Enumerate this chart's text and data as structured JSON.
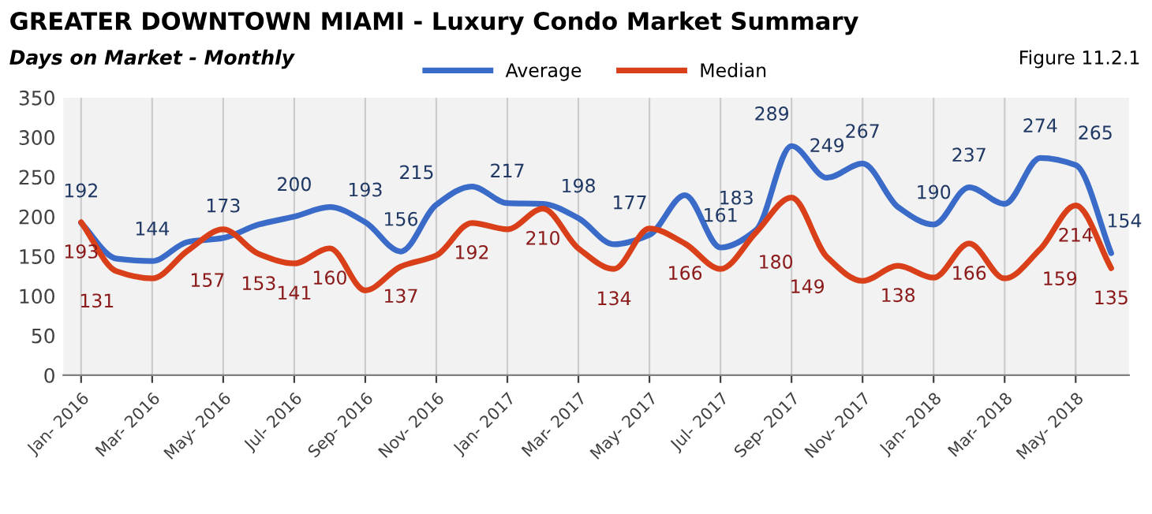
{
  "chart_data": {
    "type": "line",
    "title": "GREATER DOWNTOWN MIAMI - Luxury Condo Market Summary",
    "subtitle": "Days on Market - Monthly",
    "annotations": [
      "Figure 11.2.1"
    ],
    "categories": [
      "Jan- 2016",
      null,
      "Mar- 2016",
      null,
      "May- 2016",
      null,
      "Jul- 2016",
      null,
      "Sep- 2016",
      null,
      "Nov- 2016",
      null,
      "Jan- 2017",
      null,
      "Mar- 2017",
      null,
      "May- 2017",
      null,
      "Jul- 2017",
      null,
      "Sep- 2017",
      null,
      "Nov- 2017",
      null,
      "Jan- 2018",
      null,
      "Mar- 2018",
      null,
      "May- 2018",
      null
    ],
    "series": [
      {
        "name": "Average",
        "color": "#3a6bc8",
        "values": [
          192,
          147,
          144,
          168,
          173,
          190,
          200,
          212,
          193,
          156,
          215,
          238,
          217,
          216,
          198,
          165,
          177,
          227,
          161,
          183,
          289,
          249,
          267,
          212,
          190,
          237,
          216,
          274,
          265,
          154
        ],
        "value_labels": [
          "192",
          null,
          "144",
          null,
          "173",
          null,
          "200",
          null,
          "193",
          "156",
          "215",
          null,
          "217",
          null,
          "198",
          null,
          "177",
          null,
          "161",
          "183",
          "289",
          "249",
          "267",
          null,
          "190",
          "237",
          null,
          "274",
          "265",
          "154"
        ]
      },
      {
        "name": "Median",
        "color": "#d9401a",
        "values": [
          193,
          131,
          122,
          157,
          184,
          153,
          141,
          160,
          107,
          137,
          151,
          192,
          184,
          210,
          160,
          134,
          185,
          166,
          134,
          180,
          224,
          149,
          119,
          138,
          123,
          166,
          122,
          159,
          214,
          135
        ],
        "value_labels": [
          "193",
          "131",
          null,
          "157",
          null,
          "153",
          "141",
          "160",
          null,
          "137",
          null,
          "192",
          null,
          "210",
          null,
          "134",
          null,
          "166",
          null,
          "180",
          null,
          "149",
          null,
          "138",
          null,
          "166",
          null,
          "159",
          "214",
          "135"
        ]
      }
    ],
    "ylim": [
      0,
      350
    ],
    "yticks": [
      0,
      50,
      100,
      150,
      200,
      250,
      300,
      350
    ],
    "grid": "x",
    "legend": "top",
    "marker": "none",
    "line_style": "solid"
  }
}
